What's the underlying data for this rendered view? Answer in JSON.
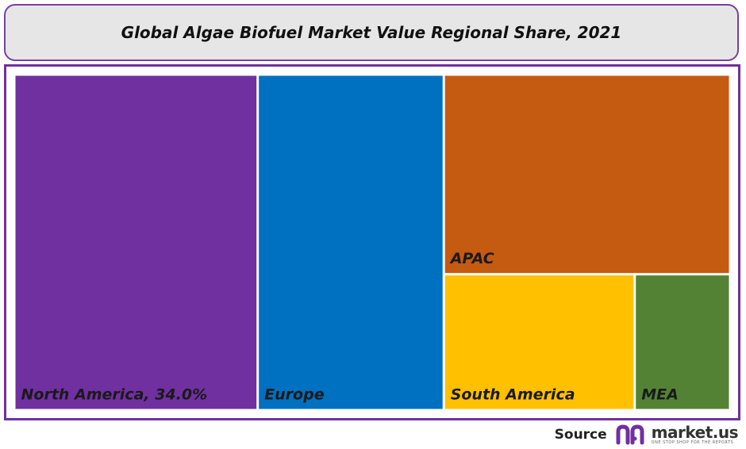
{
  "chart_data": {
    "type": "treemap",
    "title": "Global Algae Biofuel Market Value Regional Share, 2021",
    "cells": [
      {
        "label": "North America, 34.0%",
        "value": 34.0,
        "color": "#7030a0"
      },
      {
        "label": "Europe",
        "value": 26.0,
        "color": "#0070c0"
      },
      {
        "label": "APAC",
        "value": 23.8,
        "color": "#c55a11"
      },
      {
        "label": "South America",
        "value": 10.8,
        "color": "#ffc000"
      },
      {
        "label": "MEA",
        "value": 5.4,
        "color": "#548235"
      }
    ]
  },
  "footer": {
    "source_label": "Source",
    "brand_name": "market.us",
    "brand_tagline": "ONE STOP SHOP FOR THE REPORTS",
    "brand_color": "#7030a0"
  }
}
